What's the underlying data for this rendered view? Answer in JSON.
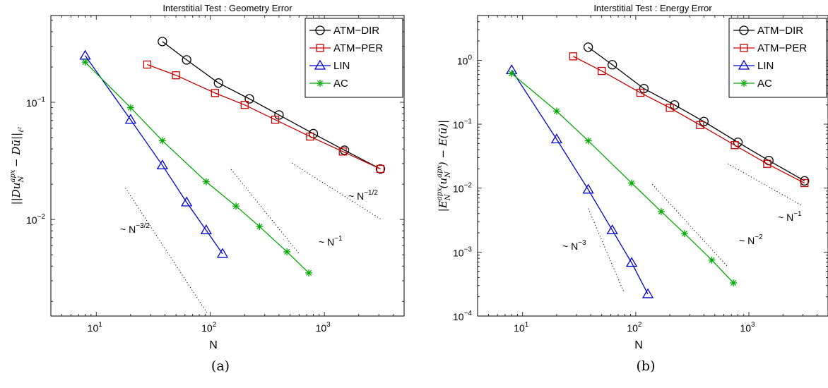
{
  "chart_data": [
    {
      "type": "line",
      "title": "Interstitial Test : Geometry Error",
      "xlabel": "N",
      "ylabel_parts": [
        "||Du",
        "apx",
        "N",
        " − Dū||",
        "ℓ²"
      ],
      "xscale": "log",
      "yscale": "log",
      "xlim": [
        4,
        5000
      ],
      "ylim": [
        0.0015,
        0.55
      ],
      "xticks": [
        {
          "base": "10",
          "exp": "1",
          "value": 10
        },
        {
          "base": "10",
          "exp": "2",
          "value": 100
        },
        {
          "base": "10",
          "exp": "3",
          "value": 1000
        }
      ],
      "yticks": [
        {
          "base": "10",
          "exp": "−2",
          "value": 0.01
        },
        {
          "base": "10",
          "exp": "−1",
          "value": 0.1
        }
      ],
      "legend_position": "top-right",
      "series": [
        {
          "name": "ATM−DIR",
          "color": "#000000",
          "marker": "circle",
          "x": [
            38,
            62,
            118,
            220,
            400,
            800,
            1500,
            3100
          ],
          "y": [
            0.33,
            0.23,
            0.146,
            0.107,
            0.078,
            0.054,
            0.039,
            0.027
          ]
        },
        {
          "name": "ATM−PER",
          "color": "#cc0000",
          "marker": "square",
          "x": [
            28,
            50,
            110,
            200,
            370,
            750,
            1450,
            3100
          ],
          "y": [
            0.21,
            0.17,
            0.12,
            0.095,
            0.071,
            0.051,
            0.038,
            0.027
          ]
        },
        {
          "name": "LIN",
          "color": "#0000cc",
          "marker": "triangle",
          "x": [
            8,
            20,
            38,
            62,
            92,
            128
          ],
          "y": [
            0.25,
            0.071,
            0.029,
            0.014,
            0.0081,
            0.0051
          ]
        },
        {
          "name": "AC",
          "color": "#00aa00",
          "marker": "star",
          "x": [
            8,
            20,
            38,
            92,
            168,
            270,
            470,
            730
          ],
          "y": [
            0.22,
            0.09,
            0.047,
            0.021,
            0.013,
            0.0087,
            0.0053,
            0.0035
          ]
        }
      ],
      "reference_lines": [
        {
          "base": "~ N",
          "exp": "−3/2",
          "x": [
            18,
            95
          ],
          "y": [
            0.0186,
            0.00156
          ]
        },
        {
          "base": "~ N",
          "exp": "−1",
          "x": [
            152,
            600
          ],
          "y": [
            0.0268,
            0.0051
          ]
        },
        {
          "base": "~ N",
          "exp": "−1/2",
          "x": [
            520,
            3100
          ],
          "y": [
            0.0303,
            0.0101
          ]
        }
      ],
      "panel_label": "(a)"
    },
    {
      "type": "line",
      "title": "Interstitial Test : Energy Error",
      "xlabel": "N",
      "ylabel_parts": [
        "|E",
        "apx",
        "N",
        "(u",
        "apx",
        "N",
        ") − E(ū)|"
      ],
      "xscale": "log",
      "yscale": "log",
      "xlim": [
        4,
        5000
      ],
      "ylim": [
        0.0001,
        5
      ],
      "xticks": [
        {
          "base": "10",
          "exp": "1",
          "value": 10
        },
        {
          "base": "10",
          "exp": "2",
          "value": 100
        },
        {
          "base": "10",
          "exp": "3",
          "value": 1000
        }
      ],
      "yticks": [
        {
          "base": "10",
          "exp": "−4",
          "value": 0.0001
        },
        {
          "base": "10",
          "exp": "−3",
          "value": 0.001
        },
        {
          "base": "10",
          "exp": "−2",
          "value": 0.01
        },
        {
          "base": "10",
          "exp": "−1",
          "value": 0.1
        },
        {
          "base": "10",
          "exp": "0",
          "value": 1
        }
      ],
      "legend_position": "top-right",
      "series": [
        {
          "name": "ATM−DIR",
          "color": "#000000",
          "marker": "circle",
          "x": [
            38,
            62,
            118,
            220,
            400,
            800,
            1500,
            3100
          ],
          "y": [
            1.6,
            0.85,
            0.36,
            0.2,
            0.11,
            0.052,
            0.027,
            0.013
          ]
        },
        {
          "name": "ATM−PER",
          "color": "#cc0000",
          "marker": "square",
          "x": [
            28,
            50,
            110,
            200,
            370,
            750,
            1450,
            3100
          ],
          "y": [
            1.15,
            0.68,
            0.31,
            0.18,
            0.097,
            0.047,
            0.024,
            0.012
          ]
        },
        {
          "name": "LIN",
          "color": "#0000cc",
          "marker": "triangle",
          "x": [
            8,
            20,
            38,
            62,
            92,
            128
          ],
          "y": [
            0.7,
            0.058,
            0.0095,
            0.0022,
            0.00068,
            0.00022
          ]
        },
        {
          "name": "AC",
          "color": "#00aa00",
          "marker": "star",
          "x": [
            8,
            20,
            38,
            92,
            168,
            270,
            470,
            730
          ],
          "y": [
            0.62,
            0.16,
            0.055,
            0.012,
            0.0043,
            0.00195,
            0.00075,
            0.00033
          ]
        }
      ],
      "reference_lines": [
        {
          "base": "~ N",
          "exp": "−3",
          "x": [
            38,
            78
          ],
          "y": [
            0.0048,
            0.000243
          ]
        },
        {
          "base": "~ N",
          "exp": "−2",
          "x": [
            140,
            650
          ],
          "y": [
            0.0115,
            0.00059
          ]
        },
        {
          "base": "~ N",
          "exp": "−1",
          "x": [
            650,
            2900
          ],
          "y": [
            0.0241,
            0.00541
          ]
        }
      ],
      "panel_label": "(b)"
    }
  ]
}
